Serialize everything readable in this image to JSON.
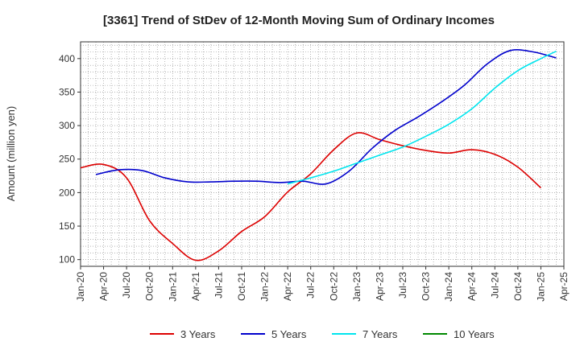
{
  "chart_data": {
    "type": "line",
    "title": "[3361]  Trend of StDev of 12-Month Moving Sum of Ordinary Incomes",
    "xlabel": "",
    "ylabel": "Amount (million yen)",
    "ylim": [
      90,
      425
    ],
    "yticks": [
      100,
      150,
      200,
      250,
      300,
      350,
      400
    ],
    "grid": true,
    "legend_position": "bottom",
    "x_tick_labels": [
      "Jan-20",
      "Apr-20",
      "Jul-20",
      "Oct-20",
      "Jan-21",
      "Apr-21",
      "Jul-21",
      "Oct-21",
      "Jan-22",
      "Apr-22",
      "Jul-22",
      "Oct-22",
      "Jan-23",
      "Apr-23",
      "Jul-23",
      "Oct-23",
      "Jan-24",
      "Apr-24",
      "Jul-24",
      "Oct-24",
      "Jan-25",
      "Apr-25"
    ],
    "x_index_note": "x = months since Jan-20 (0 = Jan-20, 63 = Apr-25)",
    "x_range": [
      0,
      63
    ],
    "series": [
      {
        "name": "3 Years",
        "color": "#dd0000",
        "x": [
          0,
          3,
          6,
          9,
          12,
          15,
          18,
          21,
          24,
          27,
          30,
          33,
          36,
          39,
          42,
          45,
          48,
          51,
          54,
          57,
          60
        ],
        "values": [
          237,
          242,
          222,
          158,
          124,
          99,
          113,
          142,
          164,
          201,
          228,
          264,
          289,
          279,
          270,
          263,
          259,
          264,
          257,
          238,
          207
        ]
      },
      {
        "name": "5 Years",
        "color": "#0000cc",
        "x": [
          2,
          5,
          8,
          11,
          14,
          17,
          20,
          23,
          26,
          29,
          32,
          35,
          38,
          41,
          44,
          47,
          50,
          53,
          56,
          59,
          62
        ],
        "values": [
          227,
          234,
          233,
          222,
          216,
          216,
          217,
          217,
          215,
          217,
          213,
          232,
          266,
          293,
          313,
          335,
          360,
          392,
          412,
          410,
          401
        ]
      },
      {
        "name": "7 Years",
        "color": "#00e5ee",
        "x": [
          27,
          30,
          33,
          36,
          39,
          42,
          45,
          48,
          51,
          54,
          57,
          60,
          62
        ],
        "values": [
          213,
          222,
          232,
          244,
          256,
          268,
          284,
          302,
          325,
          356,
          382,
          400,
          411
        ]
      },
      {
        "name": "10 Years",
        "color": "#008800",
        "x": [],
        "values": []
      }
    ]
  }
}
